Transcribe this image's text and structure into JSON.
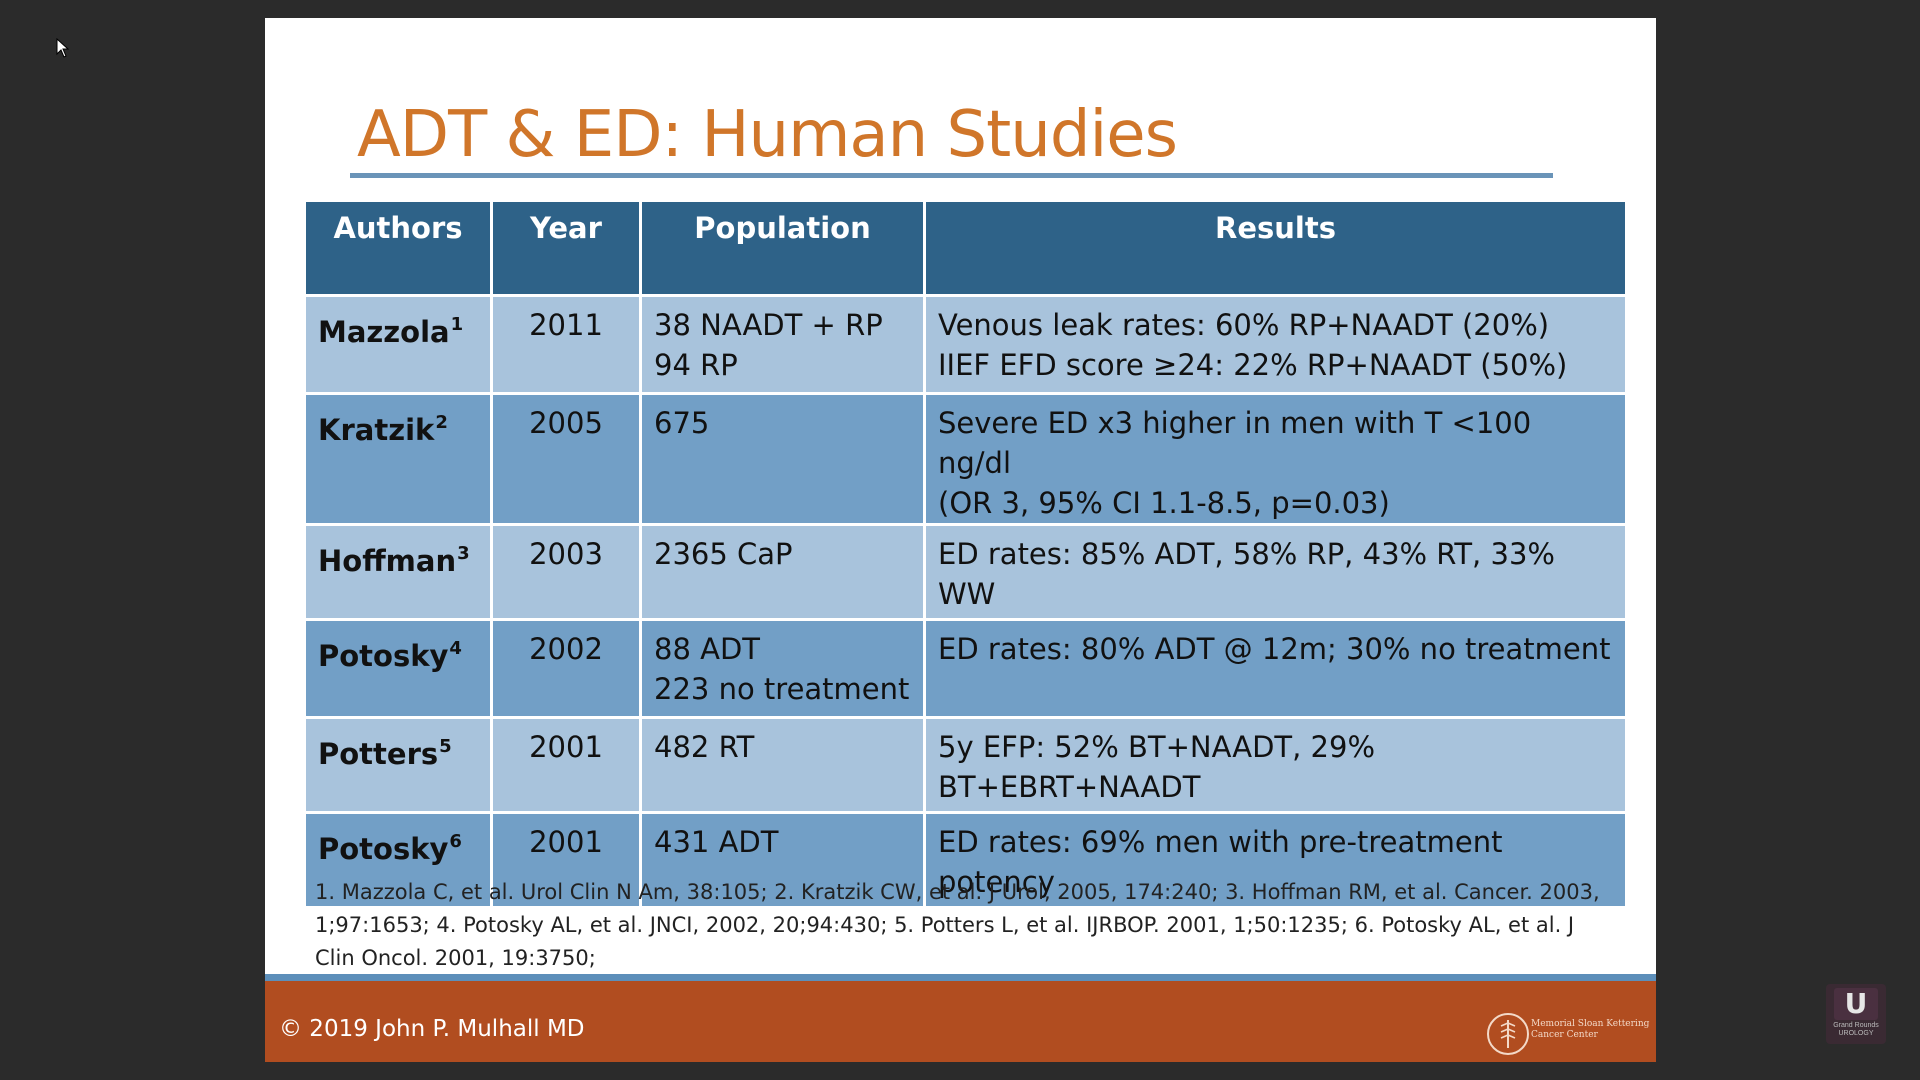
{
  "slide": {
    "title": "ADT & ED: Human Studies",
    "table": {
      "headers": [
        "Authors",
        "Year",
        "Population",
        "Results"
      ],
      "rows": [
        {
          "author": "Mazzola",
          "sup": "1",
          "year": "2011",
          "population": [
            "38 NAADT + RP",
            "94 RP"
          ],
          "results": [
            "Venous leak rates: 60% RP+NAADT (20%)",
            "IIEF EFD score ≥24: 22% RP+NAADT (50%)"
          ]
        },
        {
          "author": "Kratzik",
          "sup": "2",
          "year": "2005",
          "population": [
            "675"
          ],
          "results": [
            "Severe ED x3 higher in men with T <100 ng/dl",
            "(OR 3, 95% CI 1.1-8.5, p=0.03)"
          ]
        },
        {
          "author": "Hoffman",
          "sup": "3",
          "year": "2003",
          "population": [
            "2365 CaP"
          ],
          "results": [
            "ED rates: 85% ADT, 58% RP, 43% RT, 33% WW"
          ]
        },
        {
          "author": "Potosky",
          "sup": "4",
          "year": "2002",
          "population": [
            "88 ADT",
            "223 no treatment"
          ],
          "results": [
            "ED rates: 80% ADT @ 12m; 30% no treatment"
          ]
        },
        {
          "author": "Potters",
          "sup": "5",
          "year": "2001",
          "population": [
            "482 RT"
          ],
          "results": [
            "5y EFP: 52% BT+NAADT, 29% BT+EBRT+NAADT"
          ]
        },
        {
          "author": "Potosky",
          "sup": "6",
          "year": "2001",
          "population": [
            "431 ADT"
          ],
          "results": [
            "ED rates: 69% men with pre-treatment potency"
          ]
        }
      ]
    },
    "references": "1. Mazzola C, et al. Urol Clin N Am, 38:105; 2. Kratzik CW, et al. J Urol, 2005, 174:240; 3. Hoffman RM, et al. Cancer. 2003, 1;97:1653; 4. Potosky AL, et al. JNCI, 2002, 20;94:430; 5. Potters L, et al. IJRBOP. 2001, 1;50:1235; 6. Potosky AL, et al. J Clin Oncol. 2001, 19:3750;",
    "footer": {
      "copyright": "© 2019 John P. Mulhall MD",
      "logo_text": "Memorial Sloan Kettering Cancer Center"
    }
  },
  "watermark": {
    "letter": "U",
    "text": "Grand Rounds UROLOGY"
  },
  "colors": {
    "title": "#d0762a",
    "header": "#2e6288",
    "row_light": "#a8c3dc",
    "row_dark": "#729fc6",
    "footer": "#b14d20",
    "footer_stripe": "#5d8fba"
  },
  "icons": {
    "cursor": "mouse-pointer-icon",
    "logo": "msk-logo-icon",
    "watermark": "grand-rounds-urology-logo-icon"
  }
}
